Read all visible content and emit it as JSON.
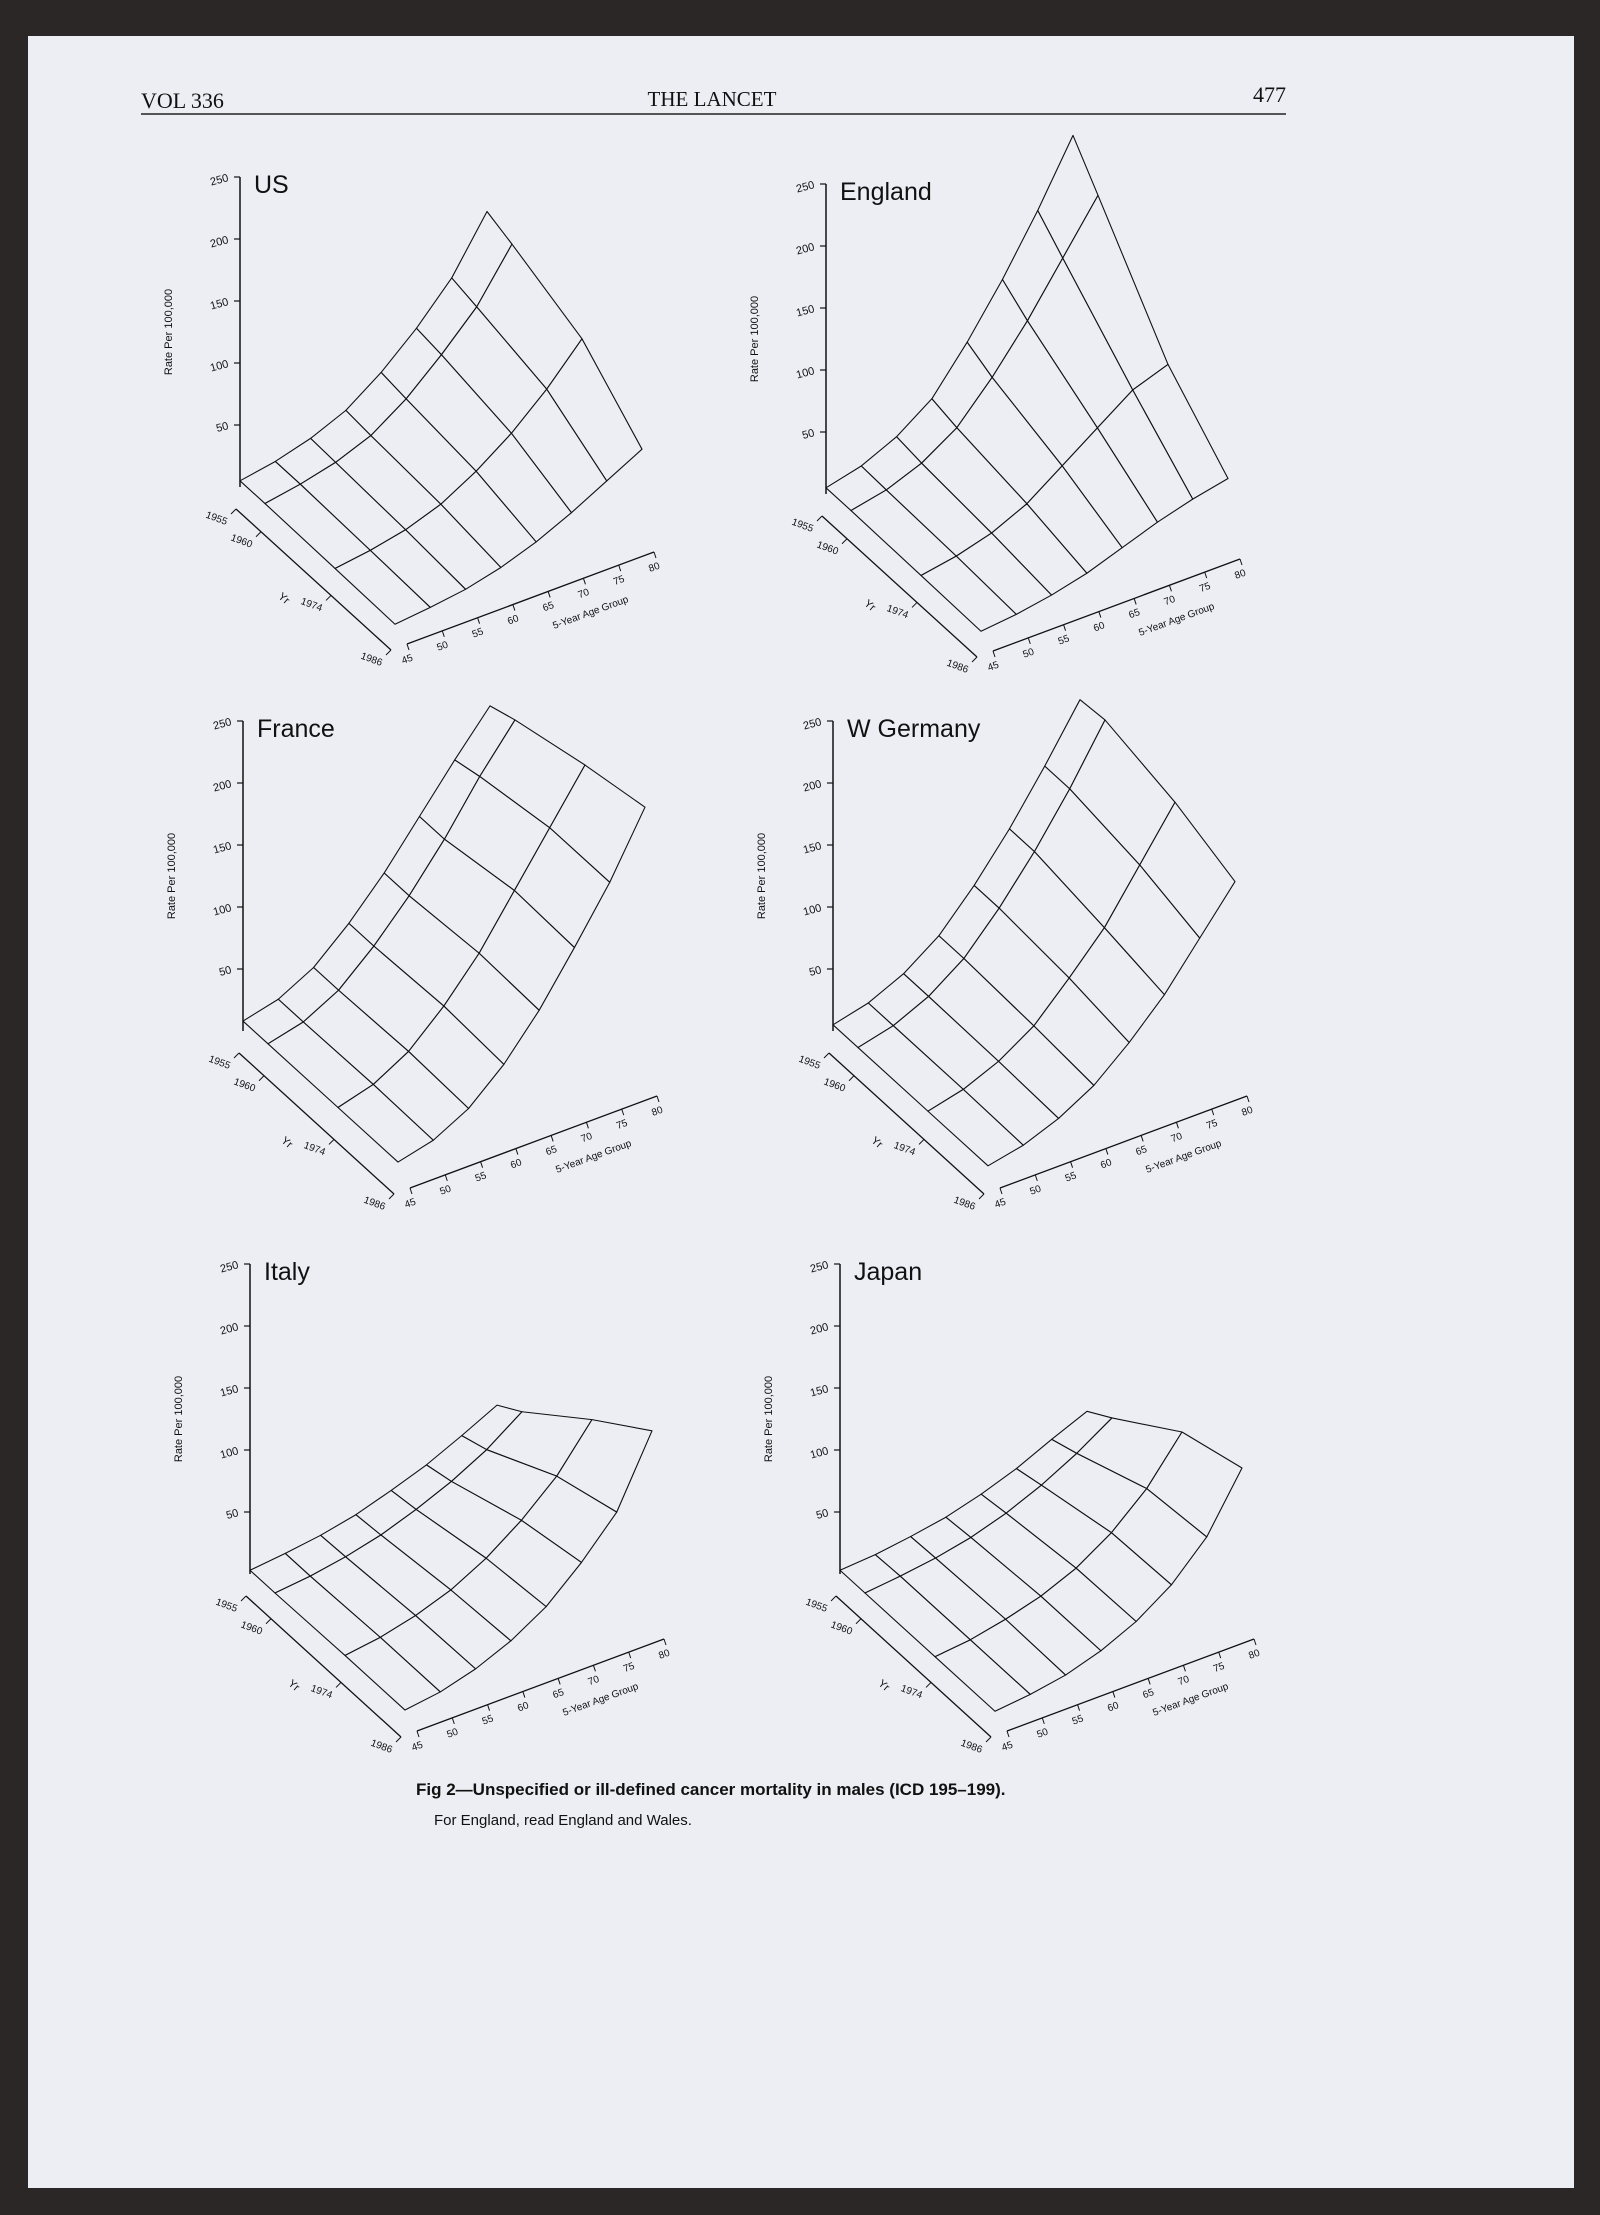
{
  "header": {
    "volume": "VOL 336",
    "journal": "THE LANCET",
    "page": "477"
  },
  "figure": {
    "axes": {
      "z_label": "Rate Per 100,000",
      "zlim": [
        0,
        250
      ],
      "z_ticks": [
        50,
        100,
        150,
        200,
        250
      ],
      "year_label": "Yr",
      "year_lim": [
        1955,
        1986
      ],
      "year_ticks": [
        1955,
        1960,
        1974,
        1986
      ],
      "age_label": "5-Year Age Group",
      "age_lim": [
        45,
        80
      ],
      "age_ticks": [
        45,
        50,
        55,
        60,
        65,
        70,
        75,
        80
      ]
    },
    "panels": [
      {
        "title": "US",
        "rates": [
          [
            5,
            10,
            18,
            30,
            50,
            75,
            105,
            148
          ],
          [
            5,
            10,
            17,
            28,
            47,
            72,
            100,
            140
          ],
          [
            4,
            8,
            14,
            24,
            40,
            60,
            85,
            115
          ],
          [
            3,
            6,
            10,
            17,
            27,
            40,
            55,
            70
          ]
        ]
      },
      {
        "title": "England",
        "rates": [
          [
            5,
            12,
            25,
            45,
            80,
            120,
            165,
            215
          ],
          [
            5,
            11,
            22,
            40,
            70,
            105,
            145,
            185
          ],
          [
            4,
            9,
            17,
            30,
            50,
            70,
            90,
            100
          ],
          [
            3,
            6,
            11,
            18,
            28,
            38,
            46,
            52
          ]
        ]
      },
      {
        "title": "France",
        "rates": [
          [
            8,
            15,
            30,
            55,
            85,
            120,
            155,
            188
          ],
          [
            8,
            15,
            30,
            55,
            85,
            120,
            160,
            195
          ],
          [
            8,
            16,
            32,
            58,
            90,
            130,
            170,
            210
          ],
          [
            8,
            15,
            30,
            55,
            88,
            128,
            170,
            220
          ]
        ]
      },
      {
        "title": "W Germany",
        "rates": [
          [
            5,
            12,
            25,
            45,
            75,
            110,
            150,
            193
          ],
          [
            5,
            12,
            25,
            45,
            75,
            110,
            150,
            195
          ],
          [
            5,
            12,
            24,
            42,
            70,
            100,
            140,
            180
          ],
          [
            5,
            11,
            22,
            38,
            62,
            90,
            125,
            160
          ]
        ]
      },
      {
        "title": "Italy",
        "rates": [
          [
            3,
            6,
            10,
            16,
            25,
            35,
            48,
            62
          ],
          [
            3,
            6,
            11,
            18,
            28,
            40,
            55,
            75
          ],
          [
            4,
            8,
            15,
            25,
            40,
            60,
            85,
            120
          ],
          [
            4,
            8,
            16,
            28,
            45,
            70,
            100,
            155
          ]
        ]
      },
      {
        "title": "Japan",
        "rates": [
          [
            3,
            5,
            9,
            14,
            22,
            32,
            45,
            57
          ],
          [
            3,
            6,
            10,
            16,
            25,
            37,
            52,
            70
          ],
          [
            3,
            6,
            12,
            20,
            32,
            50,
            75,
            110
          ],
          [
            3,
            6,
            11,
            20,
            33,
            52,
            80,
            125
          ]
        ]
      }
    ],
    "caption": "Fig 2—Unspecified or ill-defined cancer mortality in males (ICD 195–199).",
    "note": "For England, read England and Wales."
  }
}
